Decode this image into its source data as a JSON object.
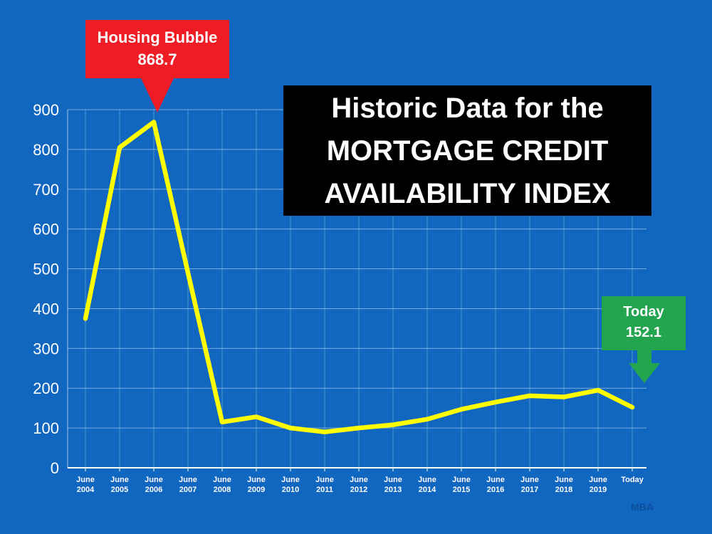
{
  "slide": {
    "background_color": "#1166bf",
    "grid_color": "rgba(255,255,255,0.45)"
  },
  "title_box": {
    "lines": [
      "Historic Data for the",
      "MORTGAGE CREDIT",
      "AVAILABILITY INDEX"
    ],
    "bg_color": "#000000",
    "text_color": "#ffffff"
  },
  "callouts": {
    "housing_bubble": {
      "title": "Housing Bubble",
      "value": "868.7",
      "color": "#ee1c24"
    },
    "today": {
      "title": "Today",
      "value": "152.1",
      "color": "#23a44f"
    }
  },
  "footer": {
    "source": "MBA"
  },
  "chart_data": {
    "type": "line",
    "title": "Historic Data for the MORTGAGE CREDIT AVAILABILITY INDEX",
    "categories": [
      "June 2004",
      "June 2005",
      "June 2006",
      "June 2007",
      "June 2008",
      "June 2009",
      "June 2010",
      "June 2011",
      "June 2012",
      "June 2013",
      "June 2014",
      "June 2015",
      "June 2016",
      "June 2017",
      "June 2018",
      "June 2019",
      "Today"
    ],
    "values": [
      375,
      805,
      868.7,
      490,
      115,
      128,
      100,
      90,
      100,
      108,
      122,
      147,
      165,
      181,
      178,
      195,
      152.1
    ],
    "ylim": [
      0,
      900
    ],
    "ytick_step": 100,
    "line_color": "#ffff00",
    "grid": true,
    "legend": "none",
    "annotations": [
      {
        "label": "Housing Bubble",
        "value": 868.7,
        "category": "June 2006"
      },
      {
        "label": "Today",
        "value": 152.1,
        "category": "Today"
      }
    ]
  }
}
